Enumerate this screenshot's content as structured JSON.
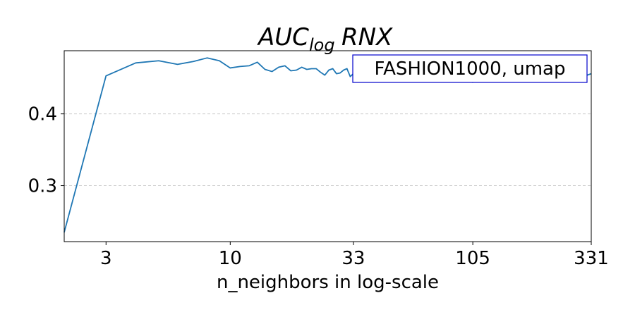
{
  "chart_data": {
    "type": "line",
    "title_main": "AUC",
    "title_sub": "log",
    "title_tail": "RNX",
    "xlabel": "n_neighbors in log-scale",
    "ylabel": "",
    "x_scale": "log",
    "xlim": [
      2,
      331
    ],
    "ylim": [
      0.222,
      0.488
    ],
    "x_ticks": [
      3,
      10,
      33,
      105,
      331
    ],
    "x_tick_labels": [
      "3",
      "10",
      "33",
      "105",
      "331"
    ],
    "y_ticks": [
      0.3,
      0.4
    ],
    "y_tick_labels": [
      "0.3",
      "0.4"
    ],
    "grid": "horizontal dashed",
    "annotation": "FASHION1000, umap",
    "series": [
      {
        "color": "#1f77b4",
        "x": [
          2,
          3,
          4,
          5,
          6,
          7,
          8,
          9,
          10,
          11,
          12,
          13,
          14,
          15,
          16,
          17,
          18,
          19,
          20,
          21,
          22,
          23,
          24,
          25,
          26,
          27,
          28,
          29,
          30,
          31,
          32,
          33,
          40,
          50,
          60,
          70,
          80,
          90,
          100,
          105,
          110,
          120,
          150,
          200,
          250,
          300,
          331
        ],
        "values": [
          0.235,
          0.453,
          0.471,
          0.474,
          0.469,
          0.473,
          0.478,
          0.474,
          0.464,
          0.466,
          0.467,
          0.472,
          0.462,
          0.459,
          0.465,
          0.467,
          0.46,
          0.461,
          0.465,
          0.462,
          0.463,
          0.463,
          0.458,
          0.454,
          0.461,
          0.463,
          0.456,
          0.457,
          0.461,
          0.463,
          0.452,
          0.456,
          0.455,
          0.452,
          0.45,
          0.448,
          0.449,
          0.447,
          0.446,
          0.444,
          0.447,
          0.448,
          0.447,
          0.449,
          0.45,
          0.451,
          0.456
        ]
      }
    ]
  }
}
